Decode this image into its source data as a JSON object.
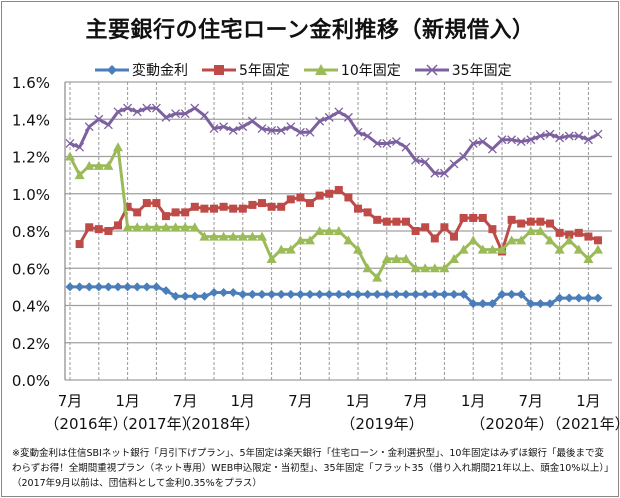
{
  "chart_data": {
    "type": "line",
    "title": "主要銀行の住宅ローン金利推移（新規借入）",
    "ylim": [
      0,
      1.6
    ],
    "yticks": [
      "0.0%",
      "0.2%",
      "0.4%",
      "0.6%",
      "0.8%",
      "1.0%",
      "1.2%",
      "1.4%",
      "1.6%"
    ],
    "grid": true,
    "legend_position": "top",
    "x_start": "2016-07",
    "x_end": "2021-02",
    "x_interval": "monthly",
    "xtick_labels": [
      "7月",
      "1月",
      "7月",
      "1月",
      "7月",
      "1月",
      "7月",
      "1月",
      "7月",
      "1月"
    ],
    "year_labels": [
      "（2016年）",
      "（2017年）",
      "（2018年）",
      "（2019年）",
      "（2020年）",
      "（2021年）"
    ],
    "series": [
      {
        "name": "変動金利",
        "color": "#4a7ebb",
        "marker": "diamond",
        "values": [
          0.5,
          0.5,
          0.5,
          0.5,
          0.5,
          0.5,
          0.5,
          0.5,
          0.5,
          0.5,
          0.48,
          0.45,
          0.45,
          0.45,
          0.45,
          0.47,
          0.47,
          0.47,
          0.46,
          0.46,
          0.46,
          0.46,
          0.46,
          0.46,
          0.46,
          0.46,
          0.46,
          0.46,
          0.46,
          0.46,
          0.46,
          0.46,
          0.46,
          0.46,
          0.46,
          0.46,
          0.46,
          0.46,
          0.46,
          0.46,
          0.46,
          0.46,
          0.41,
          0.41,
          0.41,
          0.46,
          0.46,
          0.46,
          0.41,
          0.41,
          0.41,
          0.44,
          0.44,
          0.44,
          0.44,
          0.44
        ]
      },
      {
        "name": "5年固定",
        "color": "#be4b48",
        "marker": "square",
        "values": [
          null,
          0.73,
          0.82,
          0.81,
          0.8,
          0.83,
          0.93,
          0.9,
          0.95,
          0.95,
          0.88,
          0.9,
          0.9,
          0.93,
          0.92,
          0.92,
          0.93,
          0.92,
          0.92,
          0.94,
          0.95,
          0.93,
          0.93,
          0.97,
          0.98,
          0.95,
          0.99,
          1.0,
          1.02,
          0.98,
          0.92,
          0.9,
          0.86,
          0.85,
          0.85,
          0.85,
          0.8,
          0.82,
          0.76,
          0.82,
          0.77,
          0.87,
          0.87,
          0.87,
          0.81,
          0.69,
          0.86,
          0.84,
          0.85,
          0.85,
          0.84,
          0.79,
          0.78,
          0.79,
          0.77,
          0.75
        ]
      },
      {
        "name": "10年固定",
        "color": "#9bbb59",
        "marker": "triangle",
        "values": [
          1.2,
          1.1,
          1.15,
          1.15,
          1.15,
          1.25,
          0.82,
          0.82,
          0.82,
          0.82,
          0.82,
          0.82,
          0.82,
          0.82,
          0.77,
          0.77,
          0.77,
          0.77,
          0.77,
          0.77,
          0.77,
          0.65,
          0.7,
          0.7,
          0.75,
          0.75,
          0.8,
          0.8,
          0.8,
          0.75,
          0.7,
          0.6,
          0.55,
          0.65,
          0.65,
          0.65,
          0.6,
          0.6,
          0.6,
          0.6,
          0.65,
          0.7,
          0.75,
          0.7,
          0.7,
          0.7,
          0.75,
          0.75,
          0.8,
          0.8,
          0.75,
          0.7,
          0.75,
          0.7,
          0.65,
          0.7
        ]
      },
      {
        "name": "35年固定",
        "color": "#7d60a0",
        "marker": "x",
        "values": [
          1.27,
          1.25,
          1.36,
          1.4,
          1.37,
          1.44,
          1.46,
          1.44,
          1.46,
          1.46,
          1.41,
          1.43,
          1.43,
          1.46,
          1.42,
          1.35,
          1.36,
          1.34,
          1.36,
          1.39,
          1.35,
          1.34,
          1.34,
          1.36,
          1.33,
          1.33,
          1.39,
          1.41,
          1.44,
          1.41,
          1.33,
          1.31,
          1.27,
          1.27,
          1.28,
          1.25,
          1.18,
          1.17,
          1.11,
          1.11,
          1.16,
          1.2,
          1.27,
          1.28,
          1.24,
          1.29,
          1.29,
          1.28,
          1.29,
          1.31,
          1.32,
          1.3,
          1.31,
          1.31,
          1.29,
          1.32
        ]
      }
    ],
    "footnote": "※変動金利は住信SBIネット銀行「月引下げプラン」、5年固定は楽天銀行「住宅ローン・金利選択型」、10年固定はみずほ銀行「最後まで変わらずお得！全期間重視プラン（ネット専用）WEB申込限定・当初型」、35年固定「フラット35（借り入れ期間21年以上、頭金10%以上）」（2017年9月以前は、団信料として金利0.35%をプラス）"
  }
}
